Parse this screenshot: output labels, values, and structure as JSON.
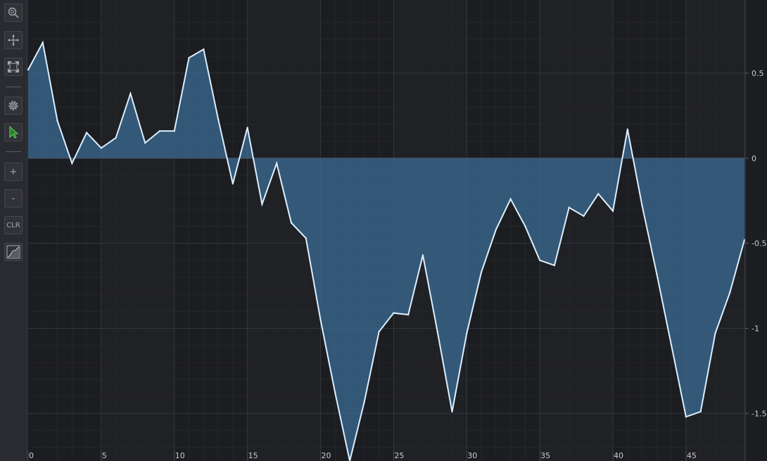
{
  "toolbar": {
    "buttons": [
      {
        "name": "zoom-icon",
        "interactable": true
      },
      {
        "name": "pan-icon",
        "interactable": true
      },
      {
        "name": "zoom-extents-icon",
        "interactable": true
      },
      {
        "name": "settings-icon",
        "interactable": true
      },
      {
        "name": "select-cursor-icon",
        "interactable": true
      },
      {
        "name": "zoom-in-button",
        "label": "+",
        "interactable": true
      },
      {
        "name": "zoom-out-button",
        "label": "-",
        "interactable": true
      },
      {
        "name": "clear-button",
        "label": "CLR",
        "interactable": true
      },
      {
        "name": "chart-type-icon",
        "interactable": true
      }
    ]
  },
  "chart_data": {
    "type": "area",
    "title": "",
    "xlabel": "",
    "ylabel": "",
    "xlim": [
      0,
      49
    ],
    "ylim": [
      -1.78,
      0.93
    ],
    "xticks": [
      0,
      5,
      10,
      15,
      20,
      25,
      30,
      35,
      40,
      45
    ],
    "yticks": [
      0.5,
      0,
      -0.5,
      -1,
      -1.5
    ],
    "ytick_labels": [
      "0.5",
      "0",
      "-0.5",
      "-1",
      "-1.5"
    ],
    "y_axis_position": "right",
    "grid": true,
    "colors": {
      "line": "#dcefff",
      "fill": "#3b6b94",
      "background": "#1c1d21",
      "zero_line": "#4a5a6a"
    },
    "series": [
      {
        "x": [
          0,
          1,
          2,
          3,
          4,
          5,
          6,
          7,
          8,
          9,
          10,
          11,
          12,
          13,
          14,
          15,
          16,
          17,
          18,
          19,
          20,
          21,
          22,
          23,
          24,
          25,
          26,
          27,
          28,
          29,
          30,
          31,
          32,
          33,
          34,
          35,
          36,
          37,
          38,
          39,
          40,
          41,
          42,
          43,
          44,
          45,
          46,
          47,
          48,
          49
        ],
        "values": [
          0.52,
          0.68,
          0.22,
          -0.03,
          0.15,
          0.06,
          0.12,
          0.38,
          0.09,
          0.16,
          0.16,
          0.59,
          0.64,
          0.23,
          -0.15,
          0.18,
          -0.27,
          -0.03,
          -0.38,
          -0.47,
          -0.95,
          -1.38,
          -1.78,
          -1.43,
          -1.02,
          -0.91,
          -0.92,
          -0.57,
          -1.02,
          -1.49,
          -1.03,
          -0.67,
          -0.42,
          -0.24,
          -0.4,
          -0.6,
          -0.63,
          -0.29,
          -0.34,
          -0.21,
          -0.31,
          0.17,
          -0.28,
          -0.68,
          -1.1,
          -1.52,
          -1.49,
          -1.03,
          -0.79,
          -0.48
        ]
      }
    ]
  }
}
